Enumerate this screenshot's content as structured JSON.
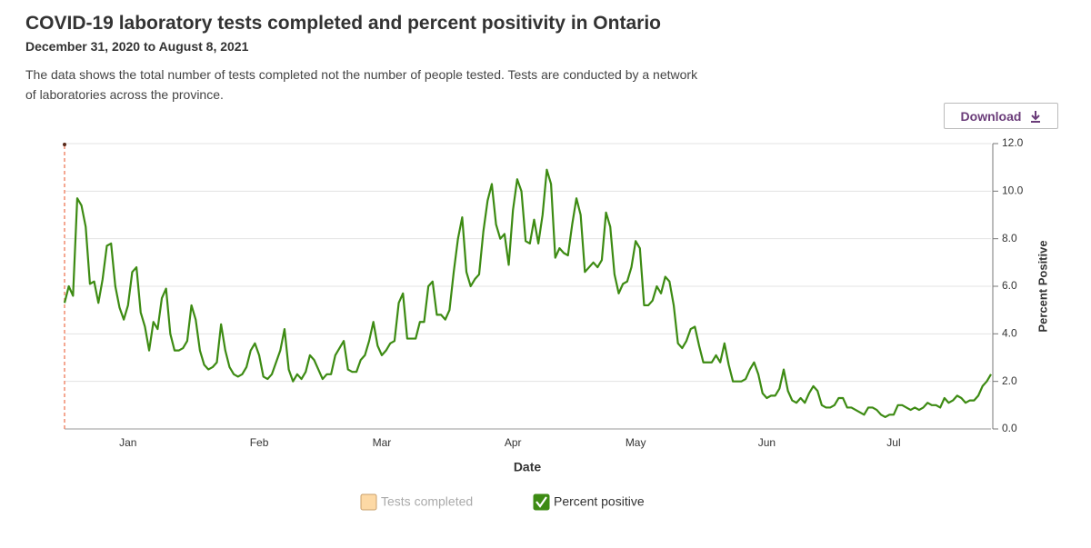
{
  "header": {
    "title": "COVID-19 laboratory tests completed and percent positivity in Ontario",
    "subtitle": "December 31, 2020 to August 8, 2021",
    "description": "The data shows the total number of tests completed not the number of people tested. Tests are conducted by a network of laboratories across the province.",
    "download_button": "Download"
  },
  "chart_data": {
    "type": "line",
    "x_label": "Date",
    "y2_label": "Percent Positive",
    "categories": [
      null,
      null,
      null,
      null,
      null,
      null,
      null,
      null,
      null,
      null,
      null,
      null,
      null,
      null,
      null,
      "Jan",
      null,
      null,
      null,
      null,
      null,
      null,
      null,
      null,
      null,
      null,
      null,
      null,
      null,
      null,
      null,
      null,
      null,
      null,
      null,
      null,
      null,
      null,
      null,
      null,
      null,
      null,
      null,
      null,
      null,
      null,
      "Feb",
      null,
      null,
      null,
      null,
      null,
      null,
      null,
      null,
      null,
      null,
      null,
      null,
      null,
      null,
      null,
      null,
      null,
      null,
      null,
      null,
      null,
      null,
      null,
      null,
      null,
      null,
      null,
      null,
      "Mar",
      null,
      null,
      null,
      null,
      null,
      null,
      null,
      null,
      null,
      null,
      null,
      null,
      null,
      null,
      null,
      null,
      null,
      null,
      null,
      null,
      null,
      null,
      null,
      null,
      null,
      null,
      null,
      null,
      null,
      null,
      "Apr",
      null,
      null,
      null,
      null,
      null,
      null,
      null,
      null,
      null,
      null,
      null,
      null,
      null,
      null,
      null,
      null,
      null,
      null,
      null,
      null,
      null,
      null,
      null,
      null,
      null,
      null,
      null,
      null,
      "May",
      null,
      null,
      null,
      null,
      null,
      null,
      null,
      null,
      null,
      null,
      null,
      null,
      null,
      null,
      null,
      null,
      null,
      null,
      null,
      null,
      null,
      null,
      null,
      null,
      null,
      null,
      null,
      null,
      null,
      null,
      "Jun",
      null,
      null,
      null,
      null,
      null,
      null,
      null,
      null,
      null,
      null,
      null,
      null,
      null,
      null,
      null,
      null,
      null,
      null,
      null,
      null,
      null,
      null,
      null,
      null,
      null,
      null,
      null,
      null,
      null,
      "Jul",
      null,
      null,
      null,
      null,
      null,
      null,
      null,
      null,
      null,
      null,
      null,
      null,
      null,
      null,
      null,
      null,
      null,
      null,
      null,
      null,
      null,
      null,
      null
    ],
    "series": [
      {
        "name": "Tests completed",
        "color": "#fdd9a5",
        "visible": false
      },
      {
        "name": "Percent positive",
        "color": "#3d8b13",
        "visible": true,
        "axis": "y2",
        "values": [
          5.3,
          6.0,
          5.6,
          9.7,
          9.4,
          8.5,
          6.1,
          6.2,
          5.3,
          6.3,
          7.7,
          7.8,
          6.0,
          5.1,
          4.6,
          5.2,
          6.6,
          6.8,
          4.9,
          4.3,
          3.3,
          4.5,
          4.2,
          5.5,
          5.9,
          4.0,
          3.3,
          3.3,
          3.4,
          3.7,
          5.2,
          4.6,
          3.3,
          2.7,
          2.5,
          2.6,
          2.8,
          4.4,
          3.3,
          2.6,
          2.3,
          2.2,
          2.3,
          2.6,
          3.3,
          3.6,
          3.1,
          2.2,
          2.1,
          2.3,
          2.8,
          3.3,
          4.2,
          2.5,
          2.0,
          2.3,
          2.1,
          2.4,
          3.1,
          2.9,
          2.5,
          2.1,
          2.3,
          2.3,
          3.1,
          3.4,
          3.7,
          2.5,
          2.4,
          2.4,
          2.9,
          3.1,
          3.7,
          4.5,
          3.5,
          3.1,
          3.3,
          3.6,
          3.7,
          5.3,
          5.7,
          3.8,
          3.8,
          3.8,
          4.5,
          4.5,
          6.0,
          6.2,
          4.8,
          4.8,
          4.6,
          5.0,
          6.6,
          8.0,
          8.9,
          6.6,
          6.0,
          6.3,
          6.5,
          8.3,
          9.6,
          10.3,
          8.6,
          8.0,
          8.2,
          6.9,
          9.2,
          10.5,
          10.0,
          7.9,
          7.8,
          8.8,
          7.8,
          9.0,
          10.9,
          10.3,
          7.2,
          7.6,
          7.4,
          7.3,
          8.6,
          9.7,
          9.0,
          6.6,
          6.8,
          7.0,
          6.8,
          7.1,
          9.1,
          8.5,
          6.5,
          5.7,
          6.1,
          6.2,
          6.8,
          7.9,
          7.6,
          5.2,
          5.2,
          5.4,
          6.0,
          5.7,
          6.4,
          6.2,
          5.2,
          3.6,
          3.4,
          3.7,
          4.2,
          4.3,
          3.5,
          2.8,
          2.8,
          2.8,
          3.1,
          2.8,
          3.6,
          2.7,
          2.0,
          2.0,
          2.0,
          2.1,
          2.5,
          2.8,
          2.3,
          1.5,
          1.3,
          1.4,
          1.4,
          1.7,
          2.5,
          1.6,
          1.2,
          1.1,
          1.3,
          1.1,
          1.5,
          1.8,
          1.6,
          1.0,
          0.9,
          0.9,
          1.0,
          1.3,
          1.3,
          0.9,
          0.9,
          0.8,
          0.7,
          0.6,
          0.9,
          0.9,
          0.8,
          0.6,
          0.5,
          0.6,
          0.6,
          1.0,
          1.0,
          0.9,
          0.8,
          0.9,
          0.8,
          0.9,
          1.1,
          1.0,
          1.0,
          0.9,
          1.3,
          1.1,
          1.2,
          1.4,
          1.3,
          1.1,
          1.2,
          1.2,
          1.4,
          1.8,
          2.0,
          2.3
        ]
      }
    ],
    "y2lim": [
      0,
      12
    ],
    "y2ticks": [
      {
        "value": 0,
        "label": "0.0"
      },
      {
        "value": 2,
        "label": "2.0"
      },
      {
        "value": 4,
        "label": "4.0"
      },
      {
        "value": 6,
        "label": "6.0"
      },
      {
        "value": 8,
        "label": "8.0"
      },
      {
        "value": 10,
        "label": "10.0"
      },
      {
        "value": 12,
        "label": "12.0"
      }
    ],
    "grid": true
  }
}
